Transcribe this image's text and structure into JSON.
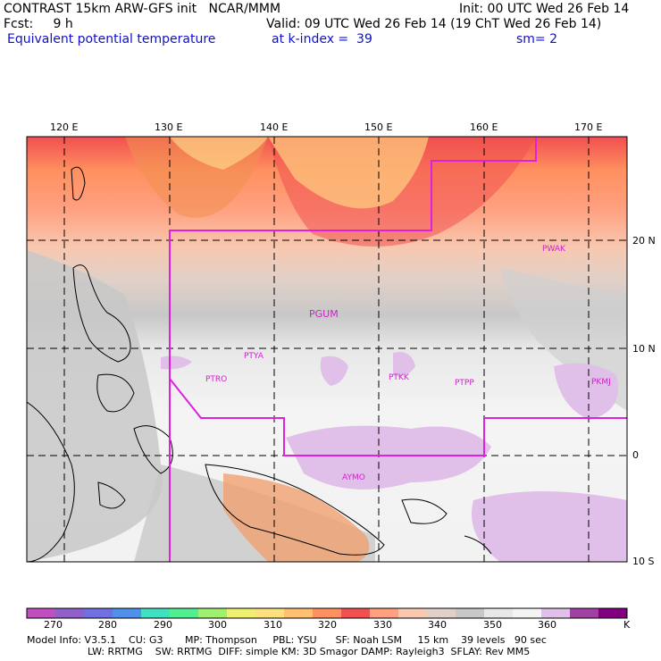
{
  "header": {
    "left1": "CONTRAST 15km ARW-GFS init   NCAR/MMM",
    "left2": "Fcst:     9 h",
    "left3": "Equivalent potential temperature",
    "right1": "Init: 00 UTC Wed 26 Feb 14",
    "right2": "Valid: 09 UTC Wed 26 Feb 14 (19 ChT Wed 26 Feb 14)",
    "right3a": "at k-index =  39",
    "right3b": "sm= 2"
  },
  "axes": {
    "lon_labels": [
      "120 E",
      "130 E",
      "140 E",
      "150 E",
      "160 E",
      "170 E"
    ],
    "lat_labels": [
      "20 N",
      "10 N",
      "0",
      "10 S"
    ]
  },
  "stations": [
    {
      "id": "PWAK"
    },
    {
      "id": "PGUM"
    },
    {
      "id": "PTYA"
    },
    {
      "id": "PTRO"
    },
    {
      "id": "PTKK"
    },
    {
      "id": "PTPP"
    },
    {
      "id": "PKMJ"
    },
    {
      "id": "AYMO"
    }
  ],
  "colorbar": {
    "labels": [
      "270",
      "280",
      "290",
      "300",
      "310",
      "320",
      "330",
      "340",
      "350",
      "360"
    ],
    "unit": "K",
    "colors": [
      "#c050c0",
      "#9060c8",
      "#7070e0",
      "#5090e8",
      "#40e0c0",
      "#50f090",
      "#a0f070",
      "#f0f070",
      "#ffe080",
      "#ffc070",
      "#ff9060",
      "#f05050",
      "#ffa080",
      "#f8c8b0",
      "#e0d0c8",
      "#c8c8c8",
      "#e8e8e8",
      "#f4f4f4",
      "#e0c0e8",
      "#a040a0",
      "#800080"
    ]
  },
  "footer": {
    "line1": "Model Info: V3.5.1    CU: G3       MP: Thompson     PBL: YSU      SF: Noah LSM     15 km    39 levels   90 sec",
    "line2": "LW: RRTMG    SW: RRTMG  DIFF: simple KM: 3D Smagor DAMP: Rayleigh3  SFLAY: Rev MM5"
  }
}
